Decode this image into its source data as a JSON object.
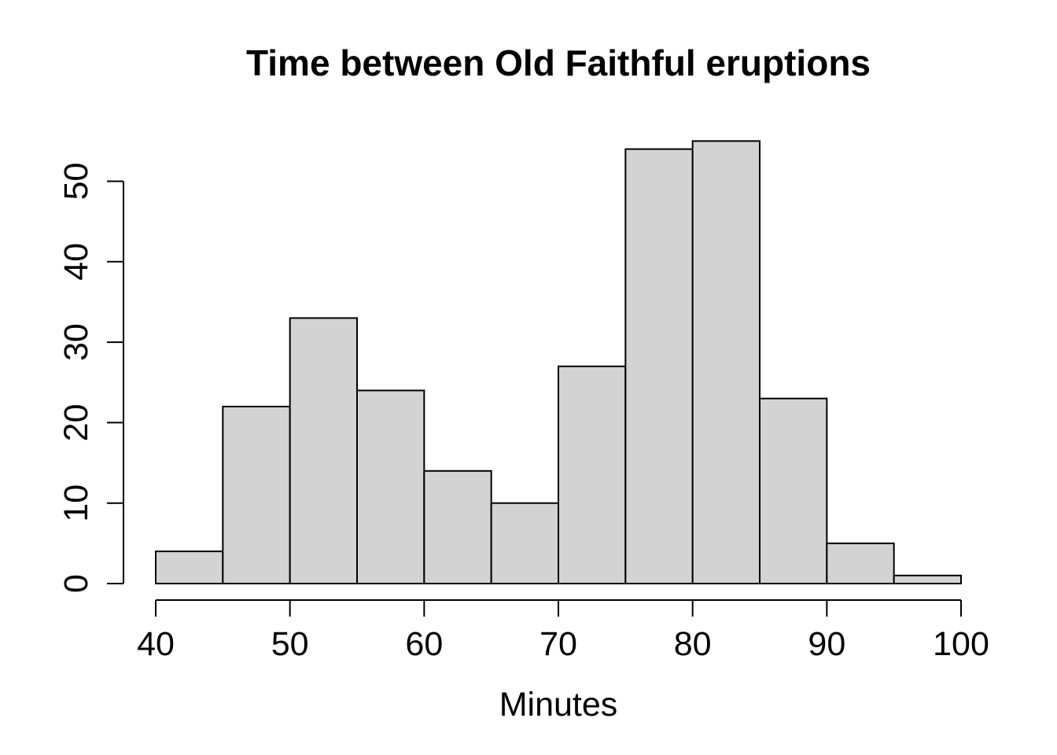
{
  "chart_data": {
    "type": "bar",
    "title": "Time between Old Faithful eruptions",
    "xlabel": "Minutes",
    "ylabel": "",
    "bin_edges": [
      40,
      45,
      50,
      55,
      60,
      65,
      70,
      75,
      80,
      85,
      90,
      95,
      100
    ],
    "values": [
      4,
      22,
      33,
      24,
      14,
      10,
      27,
      54,
      55,
      23,
      5,
      1
    ],
    "xlim": [
      40,
      100
    ],
    "ylim": [
      0,
      55
    ],
    "x_ticks": [
      "40",
      "50",
      "60",
      "70",
      "80",
      "90",
      "100"
    ],
    "y_ticks": [
      "0",
      "10",
      "20",
      "30",
      "40",
      "50"
    ],
    "grid": false,
    "bar_fill": "#d3d3d3",
    "bar_stroke": "#000000"
  }
}
